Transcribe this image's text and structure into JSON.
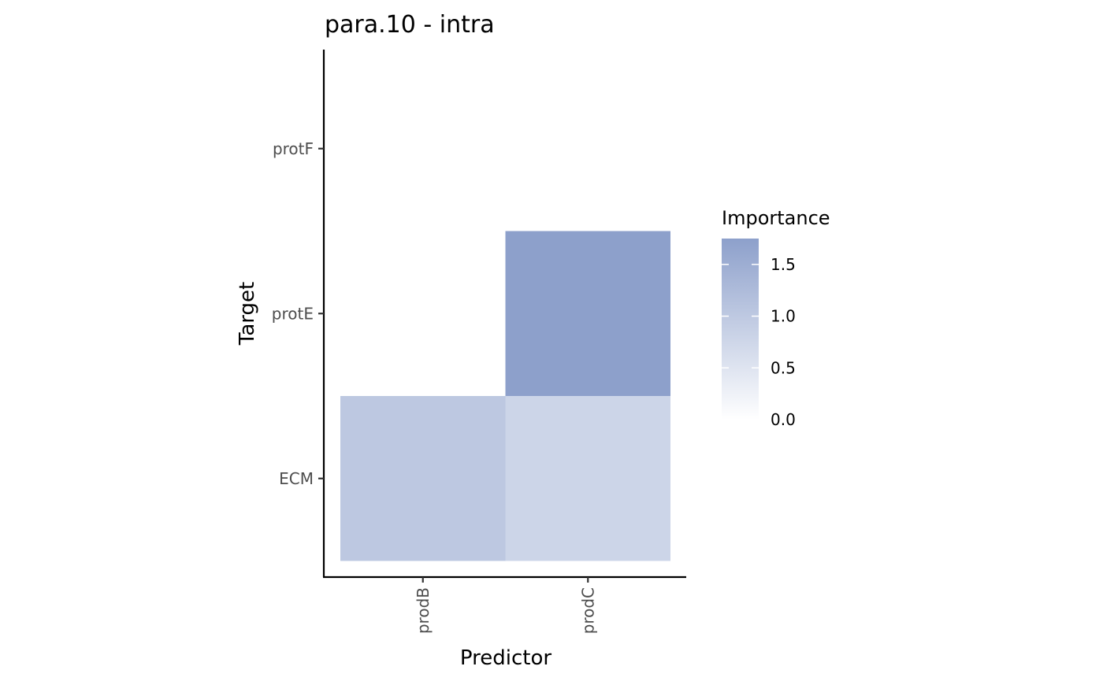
{
  "chart_data": {
    "type": "heatmap",
    "title": "para.10 - intra",
    "xlabel": "Predictor",
    "ylabel": "Target",
    "x_categories": [
      "prodB",
      "prodC"
    ],
    "y_categories": [
      "ECM",
      "protE",
      "protF"
    ],
    "cells": [
      {
        "x": "prodB",
        "y": "ECM",
        "value": 1.02
      },
      {
        "x": "prodC",
        "y": "ECM",
        "value": 0.78
      },
      {
        "x": "prodC",
        "y": "protE",
        "value": 1.75
      },
      {
        "x": "prodC",
        "y": "protF",
        "value": 0.0
      }
    ],
    "legend": {
      "title": "Importance",
      "ticks": [
        "0.0",
        "0.5",
        "1.0",
        "1.5"
      ],
      "tick_values": [
        0.0,
        0.5,
        1.0,
        1.5
      ],
      "range": [
        0.0,
        1.75
      ],
      "position": "right"
    },
    "colors": {
      "low": "#ffffff",
      "high": "#8da0cb"
    },
    "grid": false
  }
}
